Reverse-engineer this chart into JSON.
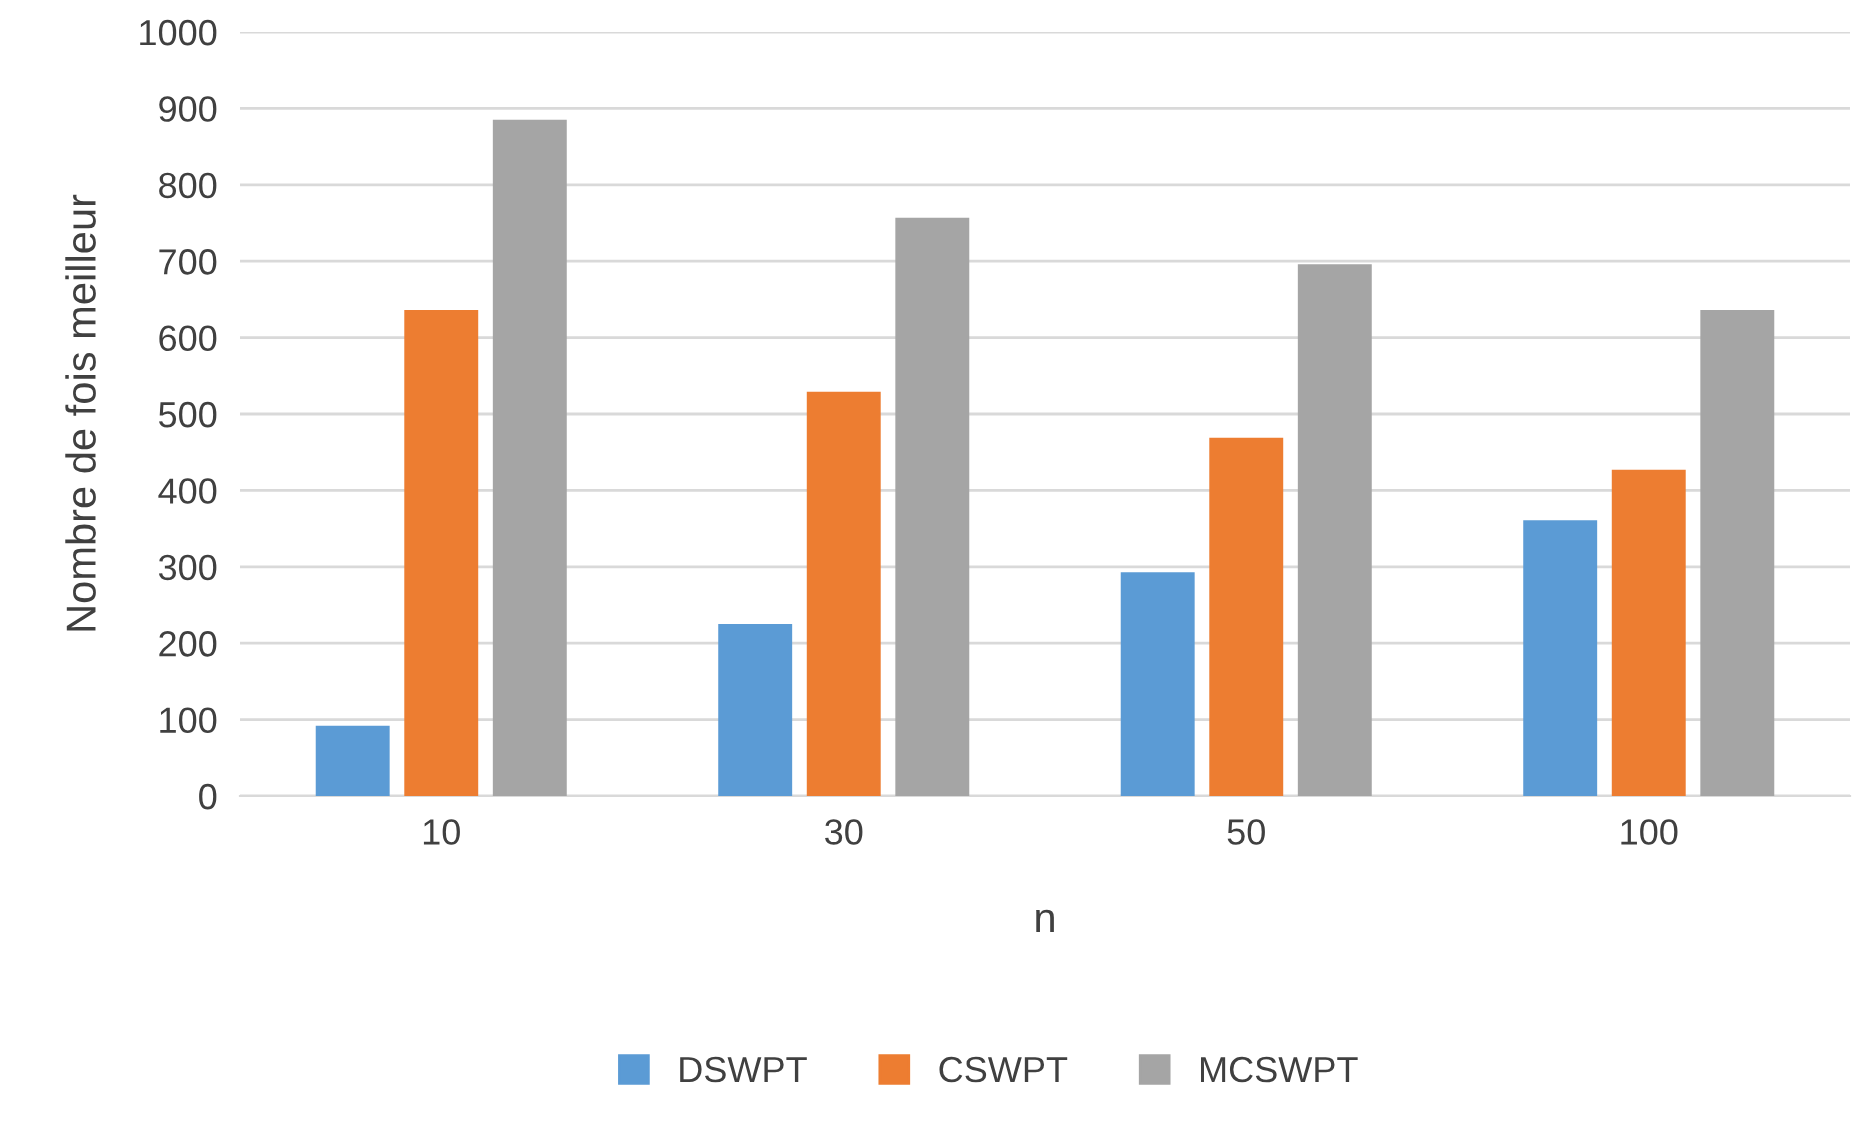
{
  "chart_data": {
    "type": "bar",
    "xlabel": "n",
    "ylabel": "Nombre de fois meilleur",
    "categories": [
      "10",
      "30",
      "50",
      "100"
    ],
    "series": [
      {
        "name": "DSWPT",
        "color": "#5b9bd5",
        "values": [
          92,
          225,
          293,
          361
        ]
      },
      {
        "name": "CSWPT",
        "color": "#ed7d31",
        "values": [
          636,
          529,
          469,
          427
        ]
      },
      {
        "name": "MCSWPT",
        "color": "#a5a5a5",
        "values": [
          885,
          757,
          696,
          636
        ]
      }
    ],
    "ylim": [
      0,
      1000
    ],
    "yticks": [
      0,
      100,
      200,
      300,
      400,
      500,
      600,
      700,
      800,
      900,
      1000
    ],
    "grid": "y",
    "legend": "bottom"
  }
}
